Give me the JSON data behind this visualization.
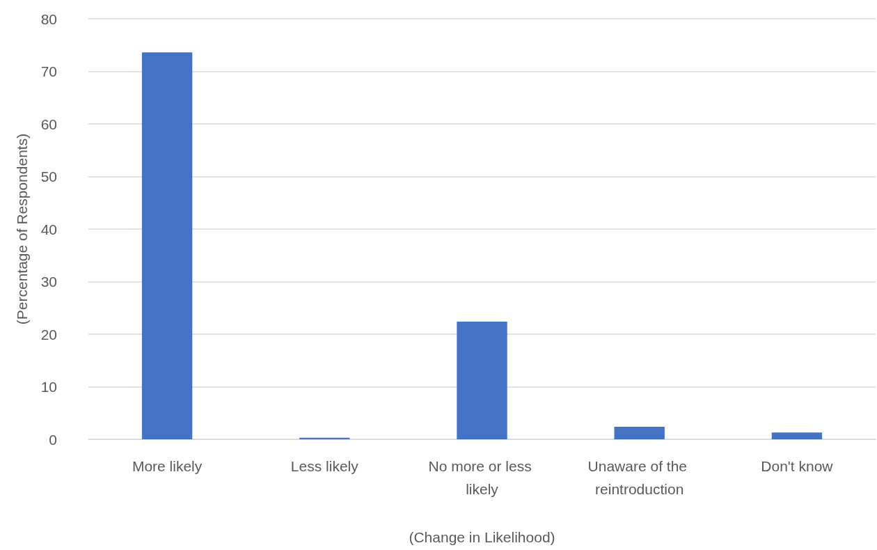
{
  "chart_data": {
    "type": "bar",
    "xlabel": "(Change in Likelihood)",
    "ylabel": "(Percentage of Respondents)",
    "categories": [
      "More likely",
      "Less likely",
      "No more or less likely",
      "Unaware of the reintroduction",
      "Don't know"
    ],
    "values": [
      73.6,
      0.3,
      22.4,
      2.4,
      1.3
    ],
    "color": "#4472c4",
    "ylim": [
      0,
      80
    ],
    "yticks": [
      0,
      10,
      20,
      30,
      40,
      50,
      60,
      70,
      80
    ],
    "grid": "y"
  }
}
